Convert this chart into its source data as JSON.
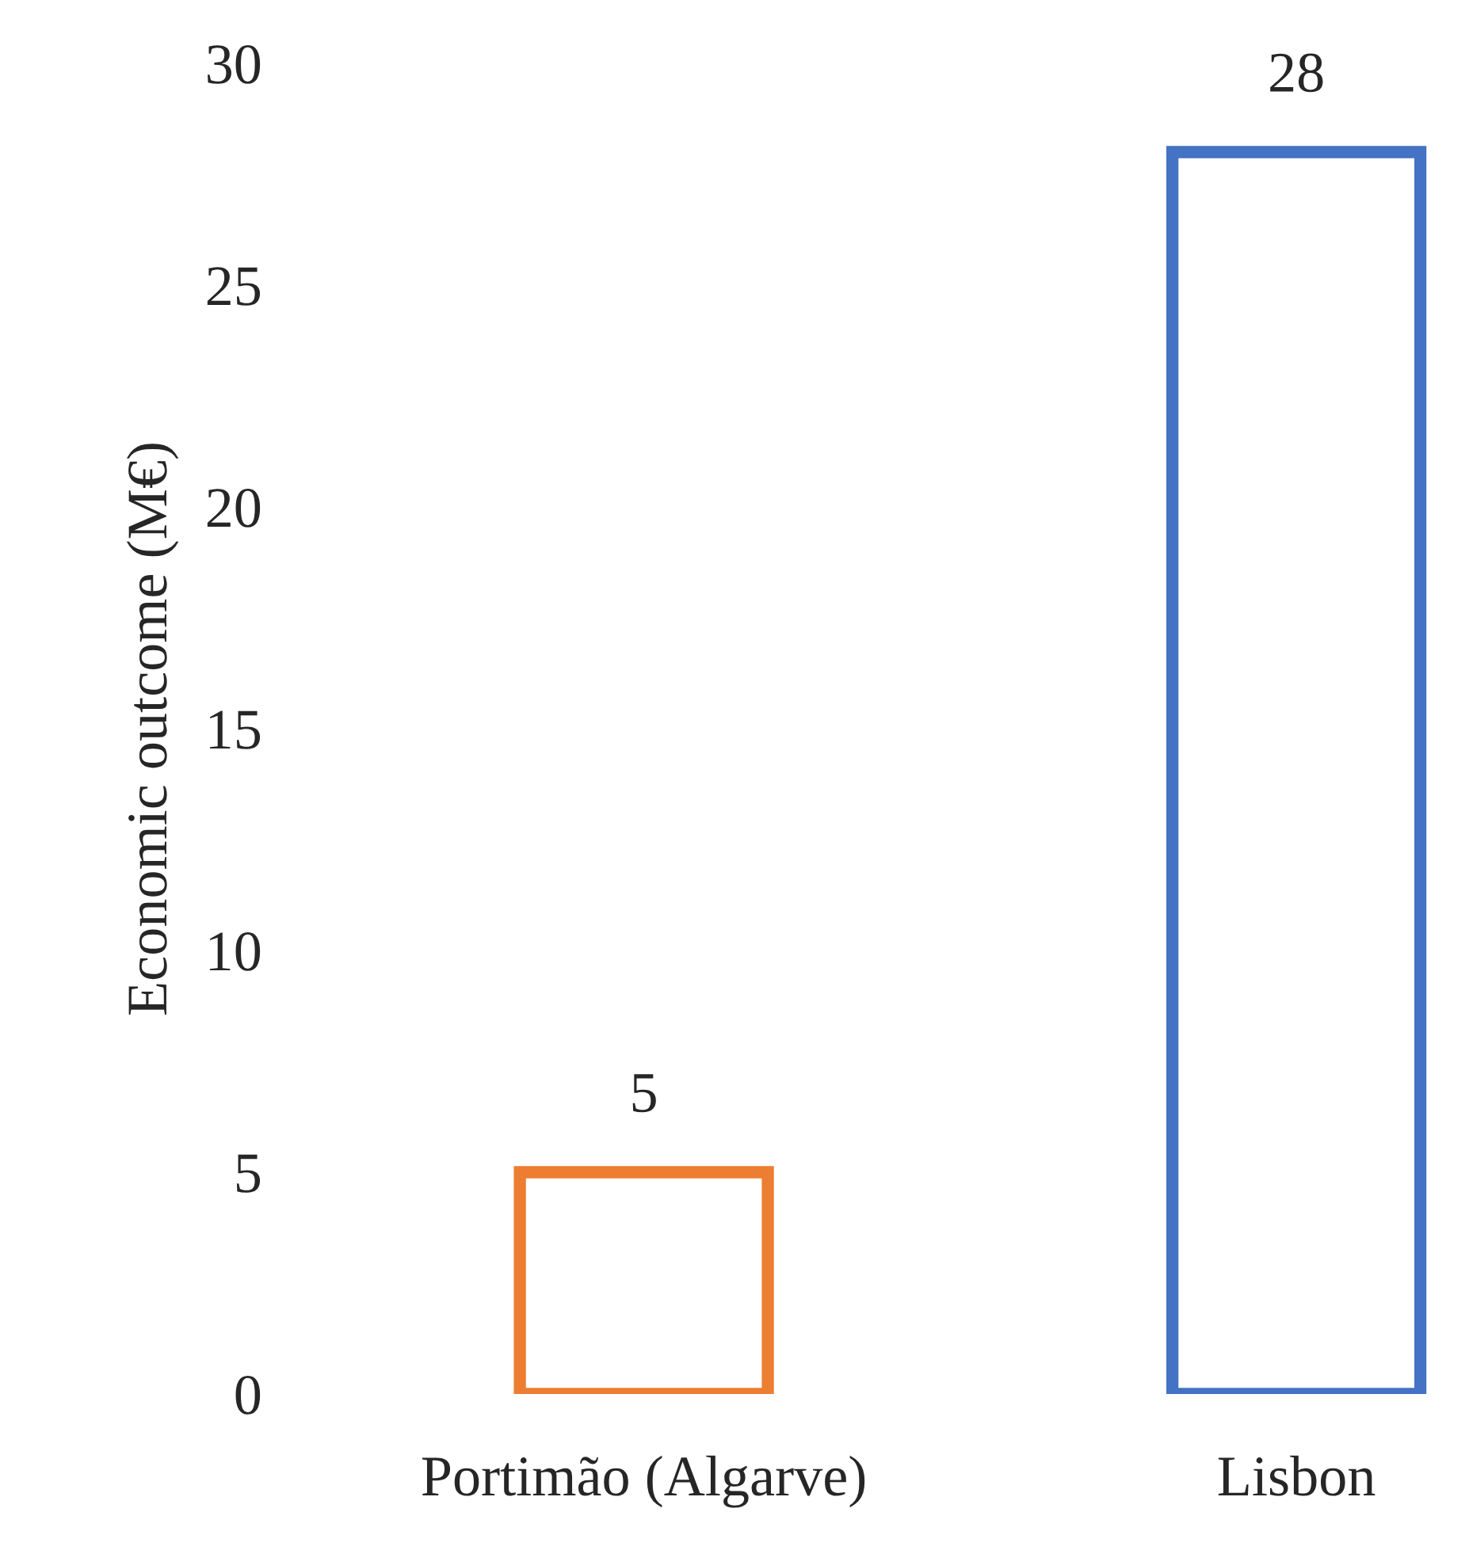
{
  "chart_data": {
    "type": "bar",
    "ylabel": "Economic outcome (M€)",
    "categories": [
      "Portimão (Algarve)",
      "Lisbon"
    ],
    "values": [
      5,
      28
    ],
    "colors": [
      "#ed7d31",
      "#4472c4"
    ],
    "ylim": [
      0,
      30
    ],
    "yticks": [
      0,
      5,
      10,
      15,
      20,
      25,
      30
    ],
    "data_labels": true,
    "grid": false,
    "legend": false
  }
}
